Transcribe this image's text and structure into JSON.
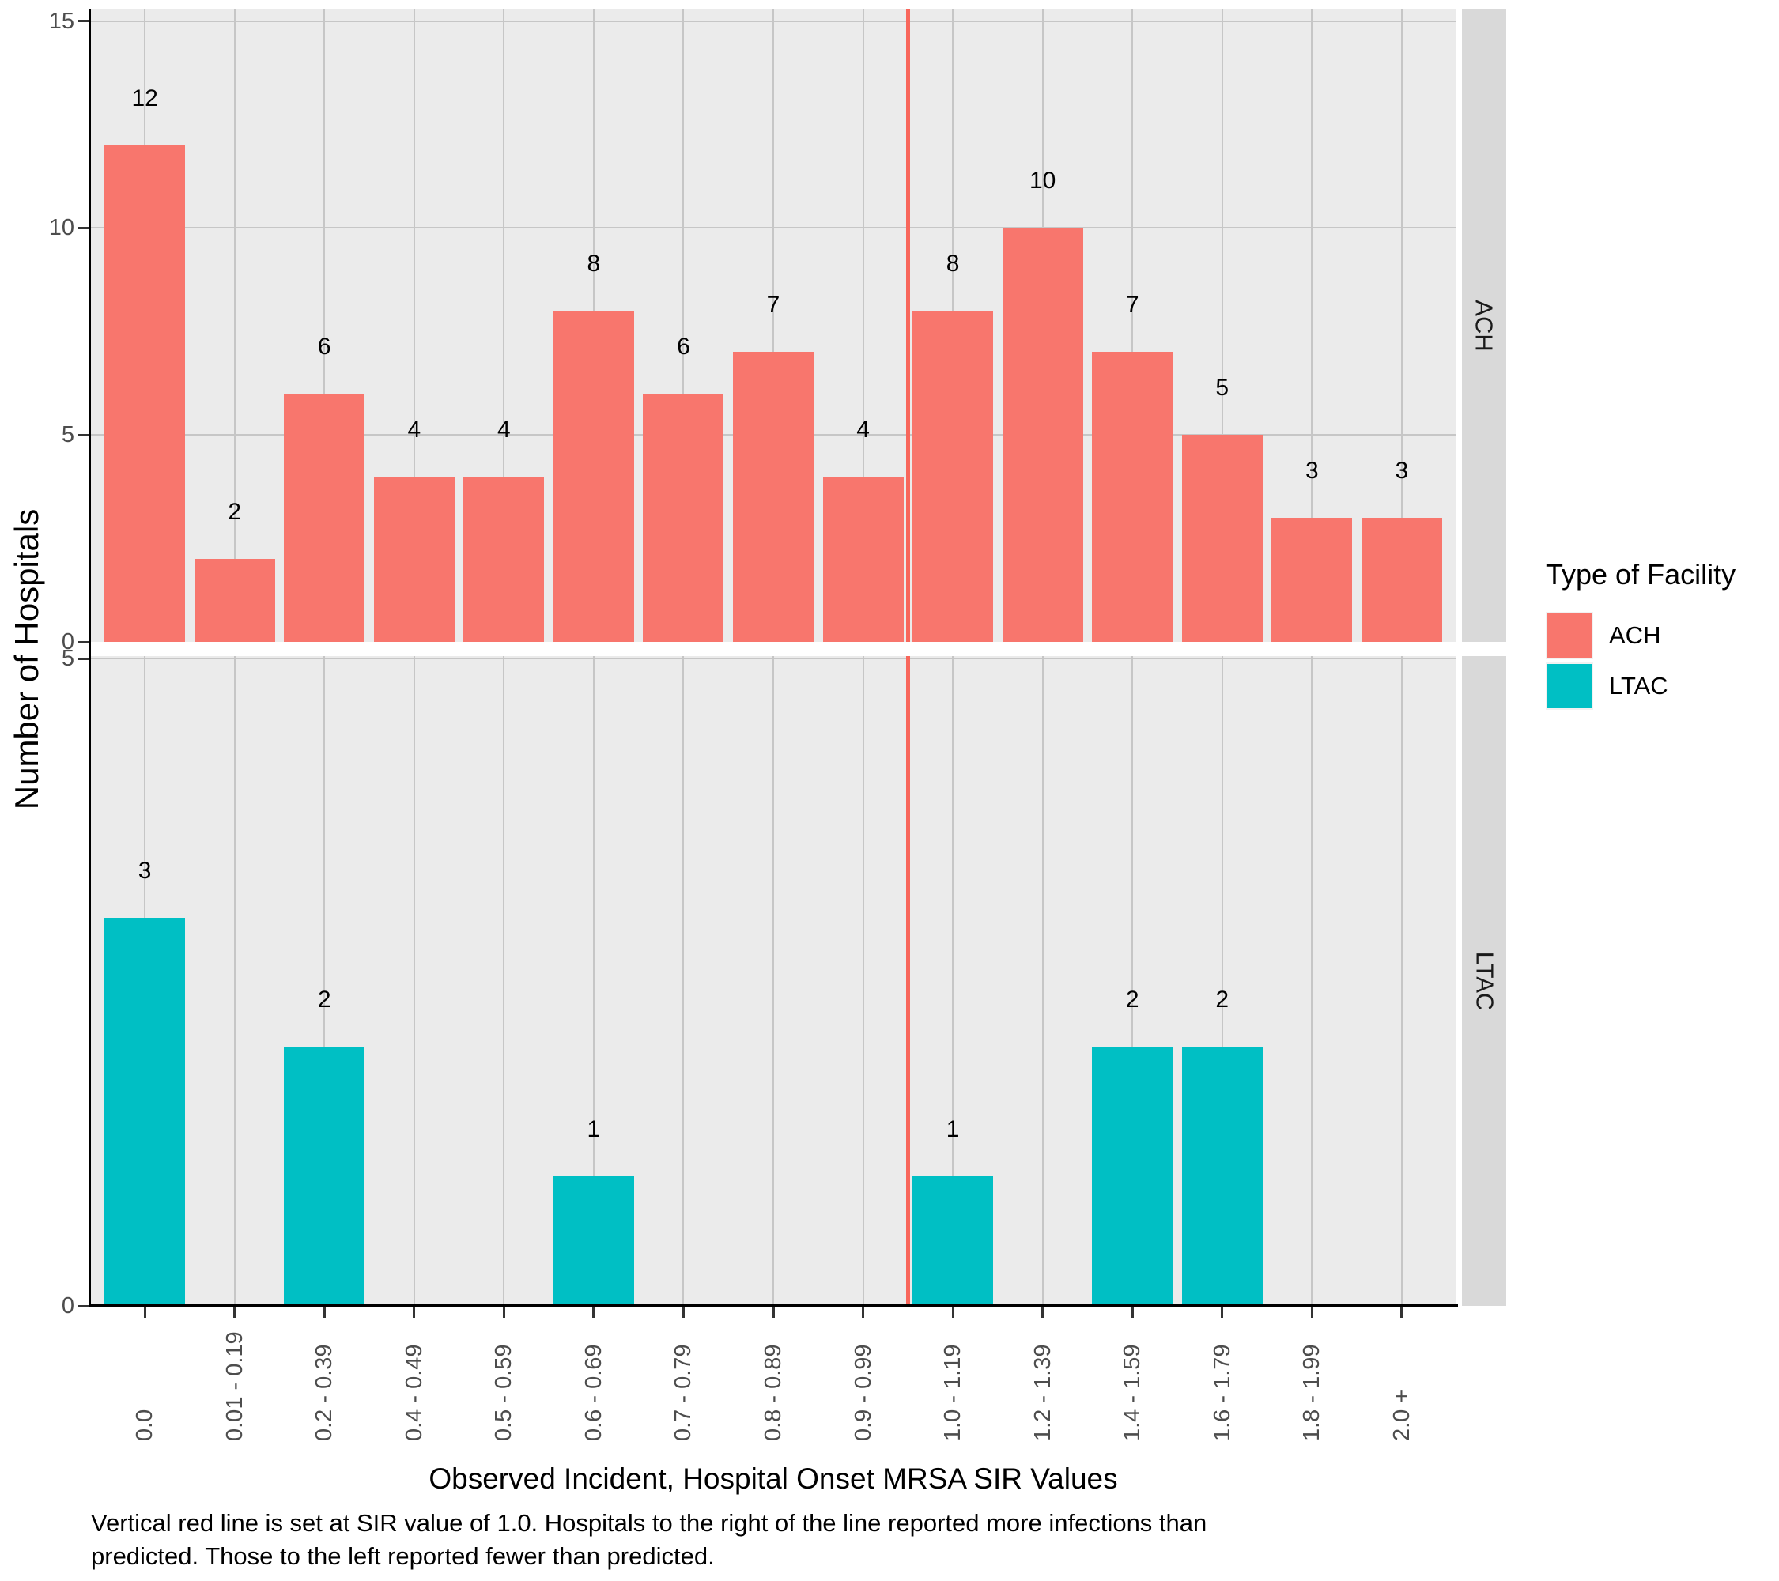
{
  "figure": {
    "y_axis_title": "Number of Hospitals",
    "x_axis_title": "Observed Incident, Hospital Onset MRSA SIR Values",
    "caption_line1": "Vertical red line is set at SIR value of 1.0.  Hospitals to the right of the line reported more infections than",
    "caption_line2": "predicted. Those to the left reported fewer than predicted."
  },
  "legend": {
    "title": "Type of Facility",
    "entries": [
      {
        "label": "ACH",
        "color": "#F8766D"
      },
      {
        "label": "LTAC",
        "color": "#00BFC4"
      }
    ]
  },
  "colors": {
    "ach_bar": "#F8766D",
    "ltac_bar": "#00BFC4",
    "panel_background": "#EBEBEB",
    "gridline": "#C6C6C6",
    "strip_background": "#D9D9D9",
    "red_reference_line": "#F8665B",
    "tick_text": "#4D4D4D"
  },
  "chart_data": {
    "type": "bar",
    "title": "",
    "xlabel": "Observed Incident, Hospital Onset MRSA SIR Values",
    "ylabel": "Number of Hospitals",
    "grid": "major",
    "legend_position": "right",
    "categories": [
      "0.0",
      "0.01 - 0.19",
      "0.2 - 0.39",
      "0.4 - 0.49",
      "0.5 - 0.59",
      "0.6 - 0.69",
      "0.7 - 0.79",
      "0.8 - 0.89",
      "0.9 - 0.99",
      "1.0 - 1.19",
      "1.2 - 1.39",
      "1.4 - 1.59",
      "1.6 - 1.79",
      "1.8 - 1.99",
      "2.0 +"
    ],
    "series": [
      {
        "name": "ACH",
        "color": "#F8766D",
        "values": [
          12,
          2,
          6,
          4,
          4,
          8,
          6,
          7,
          4,
          8,
          10,
          7,
          5,
          3,
          3
        ]
      },
      {
        "name": "LTAC",
        "color": "#00BFC4",
        "values": [
          3,
          0,
          2,
          0,
          0,
          1,
          0,
          0,
          0,
          1,
          0,
          2,
          2,
          0,
          0
        ]
      }
    ],
    "facets": [
      {
        "label": "ACH",
        "y_ticks": [
          0,
          5,
          10,
          15
        ],
        "ylim": [
          0,
          15.3
        ]
      },
      {
        "label": "LTAC",
        "y_ticks": [
          0,
          5
        ],
        "ylim": [
          0,
          5.02
        ]
      }
    ],
    "vline": {
      "value": 1.0,
      "between_categories": [
        "0.9 - 0.99",
        "1.0 - 1.19"
      ],
      "color": "#F8665B"
    }
  }
}
